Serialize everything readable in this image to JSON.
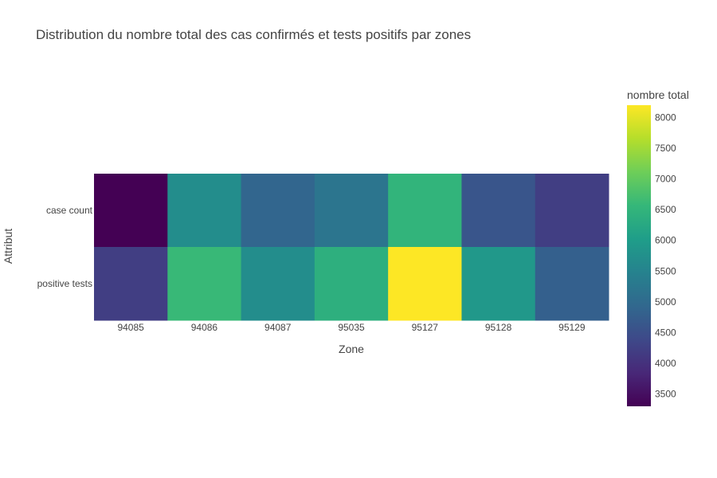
{
  "chart_data": {
    "type": "heatmap",
    "title": "Distribution du nombre total des cas confirmés et tests positifs par zones",
    "xlabel": "Zone",
    "ylabel": "Attribut",
    "x": [
      "94085",
      "94086",
      "94087",
      "95035",
      "95127",
      "95128",
      "95129"
    ],
    "y": [
      "case count",
      "positive tests"
    ],
    "z": [
      [
        3300,
        5700,
        4900,
        5200,
        6500,
        4600,
        4200
      ],
      [
        4200,
        6600,
        5700,
        6400,
        8200,
        5900,
        4800
      ]
    ],
    "colorscale": "Viridis",
    "colorbar": {
      "title": "nombre total",
      "range": [
        3300,
        8200
      ],
      "ticks": [
        3500,
        4000,
        4500,
        5000,
        5500,
        6000,
        6500,
        7000,
        7500,
        8000
      ]
    }
  }
}
